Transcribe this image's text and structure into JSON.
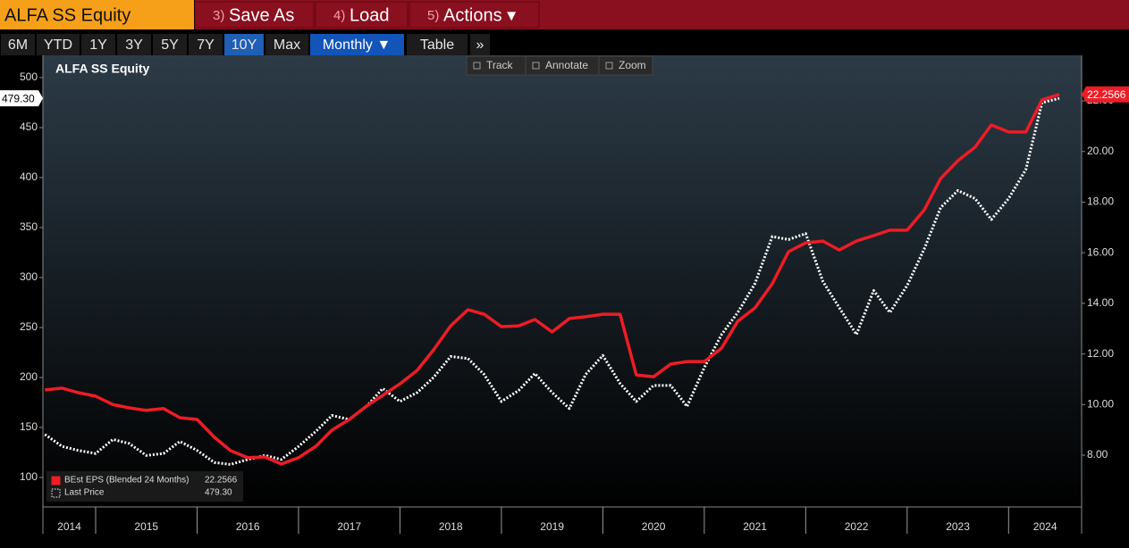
{
  "toolbar": {
    "security": "ALFA SS Equity",
    "menu": [
      {
        "key": "3)",
        "label": "Save As"
      },
      {
        "key": "4)",
        "label": "Load"
      },
      {
        "key": "5)",
        "label": "Actions ▾"
      }
    ],
    "ranges": [
      "6M",
      "YTD",
      "1Y",
      "3Y",
      "5Y",
      "7Y",
      "10Y",
      "Max"
    ],
    "selected_range": 6,
    "frequency": "Monthly ▼",
    "table_button": "Table",
    "more": "»",
    "chart_tools": [
      "Track",
      "Annotate",
      "Zoom"
    ]
  },
  "chart_data": {
    "type": "line",
    "title": "ALFA SS Equity",
    "x": [
      2014.5,
      2014.67,
      2014.83,
      2015,
      2015.17,
      2015.33,
      2015.5,
      2015.67,
      2015.83,
      2016,
      2016.17,
      2016.33,
      2016.5,
      2016.67,
      2016.83,
      2017,
      2017.17,
      2017.33,
      2017.5,
      2017.67,
      2017.83,
      2018,
      2018.17,
      2018.33,
      2018.5,
      2018.67,
      2018.83,
      2019,
      2019.17,
      2019.33,
      2019.5,
      2019.67,
      2019.83,
      2020,
      2020.17,
      2020.33,
      2020.5,
      2020.67,
      2020.83,
      2021,
      2021.17,
      2021.33,
      2021.5,
      2021.67,
      2021.83,
      2022,
      2022.17,
      2022.33,
      2022.5,
      2022.67,
      2022.83,
      2023,
      2023.17,
      2023.33,
      2023.5,
      2023.67,
      2023.83,
      2024,
      2024.17,
      2024.33,
      2024.5
    ],
    "series": [
      {
        "name": "BEst EPS (Blended 24 Months)",
        "color": "#ee1c25",
        "axis": "y2",
        "style": "solid",
        "last_label": "22.2566",
        "values": [
          10.58,
          10.65,
          10.47,
          10.33,
          10.0,
          9.87,
          9.77,
          9.84,
          9.48,
          9.41,
          8.71,
          8.18,
          7.9,
          7.93,
          7.65,
          7.9,
          8.35,
          8.99,
          9.41,
          9.94,
          10.36,
          10.82,
          11.35,
          12.16,
          13.11,
          13.75,
          13.57,
          13.08,
          13.11,
          13.36,
          12.87,
          13.4,
          13.47,
          13.57,
          13.57,
          11.17,
          11.1,
          11.6,
          11.7,
          11.7,
          12.23,
          13.29,
          13.82,
          14.77,
          16.04,
          16.39,
          16.46,
          16.11,
          16.46,
          16.68,
          16.89,
          16.89,
          17.7,
          18.93,
          19.64,
          20.17,
          21.05,
          20.77,
          20.77,
          22.04,
          22.2566
        ]
      },
      {
        "name": "Last Price",
        "color": "#ffffff",
        "axis": "y",
        "style": "dotted",
        "last_label": "479.30",
        "values": [
          143,
          131,
          127,
          124,
          138,
          134,
          122,
          124,
          136,
          127,
          115,
          113,
          118,
          122,
          118,
          131,
          146,
          162,
          158,
          171,
          189,
          176,
          185,
          200,
          221,
          219,
          203,
          176,
          187,
          204,
          185,
          169,
          203,
          222,
          194,
          176,
          192,
          192,
          171,
          210,
          243,
          265,
          294,
          341,
          338,
          344,
          296,
          270,
          243,
          287,
          265,
          292,
          329,
          370,
          387,
          379,
          358,
          379,
          408,
          475,
          479.3
        ]
      }
    ],
    "xlim": [
      2014.48,
      2024.72
    ],
    "xticks": [
      2014,
      2015,
      2016,
      2017,
      2018,
      2019,
      2020,
      2021,
      2022,
      2023,
      2024
    ],
    "ylim": [
      70.5,
      522.3
    ],
    "yticks": [
      100,
      150,
      200,
      250,
      300,
      350,
      400,
      450,
      500
    ],
    "y2lim": [
      5.955,
      23.8
    ],
    "y2ticks": [
      {
        "value": 8,
        "label": "8.00"
      },
      {
        "value": 10,
        "label": "10.00"
      },
      {
        "value": 12,
        "label": "12.00"
      },
      {
        "value": 14,
        "label": "14.00"
      },
      {
        "value": 16,
        "label": "16.00"
      },
      {
        "value": 18,
        "label": "18.00"
      },
      {
        "value": 20,
        "label": "20.00"
      },
      {
        "value": 22,
        "label": "22.00"
      }
    ],
    "grid": false,
    "legend": "lower left"
  }
}
